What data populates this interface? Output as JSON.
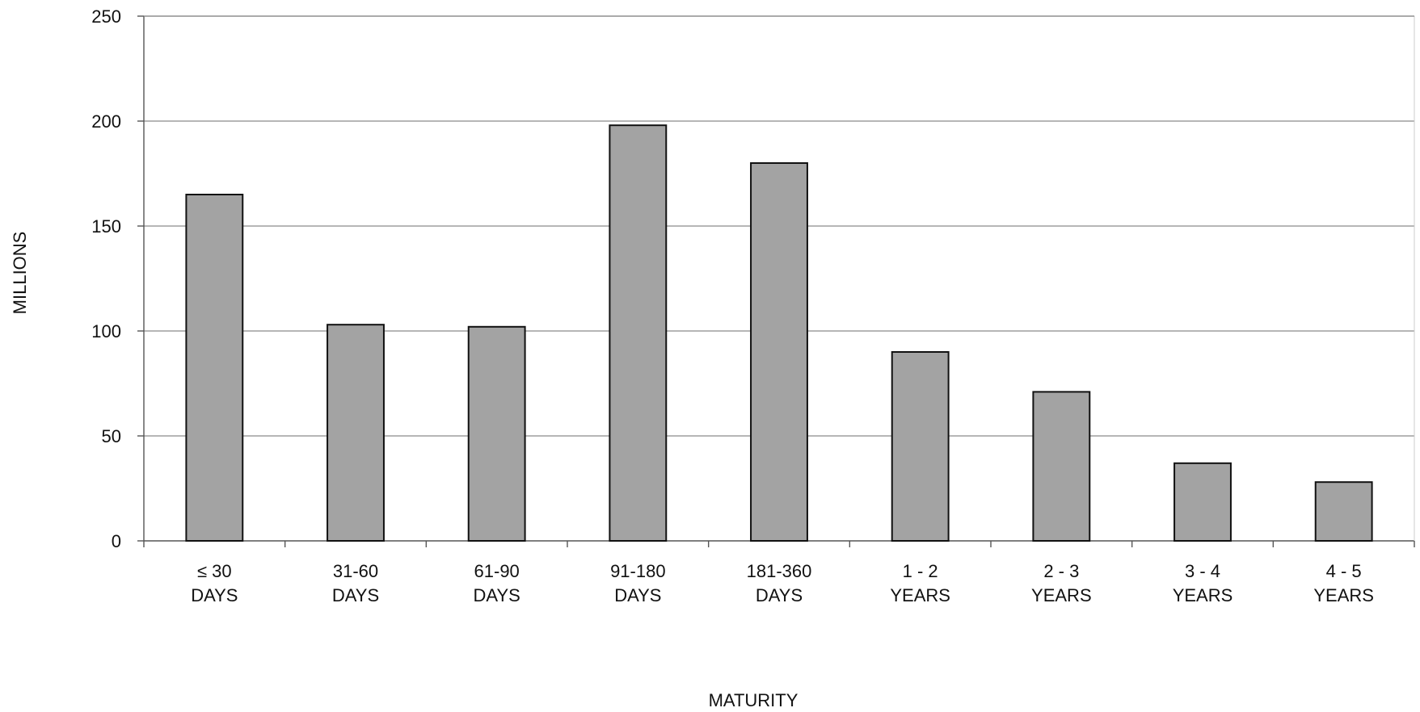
{
  "chart_data": {
    "type": "bar",
    "title": "",
    "xlabel": "MATURITY",
    "ylabel": "MILLIONS",
    "ylim": [
      0,
      250
    ],
    "yticks": [
      "0",
      "50",
      "100",
      "150",
      "200",
      "250"
    ],
    "grid": true,
    "categories": [
      [
        "≤ 30",
        "DAYS"
      ],
      [
        "31-60",
        "DAYS"
      ],
      [
        "61-90",
        "DAYS"
      ],
      [
        "91-180",
        "DAYS"
      ],
      [
        "181-360",
        "DAYS"
      ],
      [
        "1 - 2",
        "YEARS"
      ],
      [
        "2 - 3",
        "YEARS"
      ],
      [
        "3 - 4",
        "YEARS"
      ],
      [
        "4 - 5",
        "YEARS"
      ]
    ],
    "values": [
      165,
      103,
      102,
      198,
      180,
      90,
      71,
      37,
      28
    ],
    "colors": {
      "bar_fill": "#a3a3a3",
      "bar_stroke": "#111111",
      "gridline": "#8a8a8a",
      "axis": "#555555"
    }
  }
}
